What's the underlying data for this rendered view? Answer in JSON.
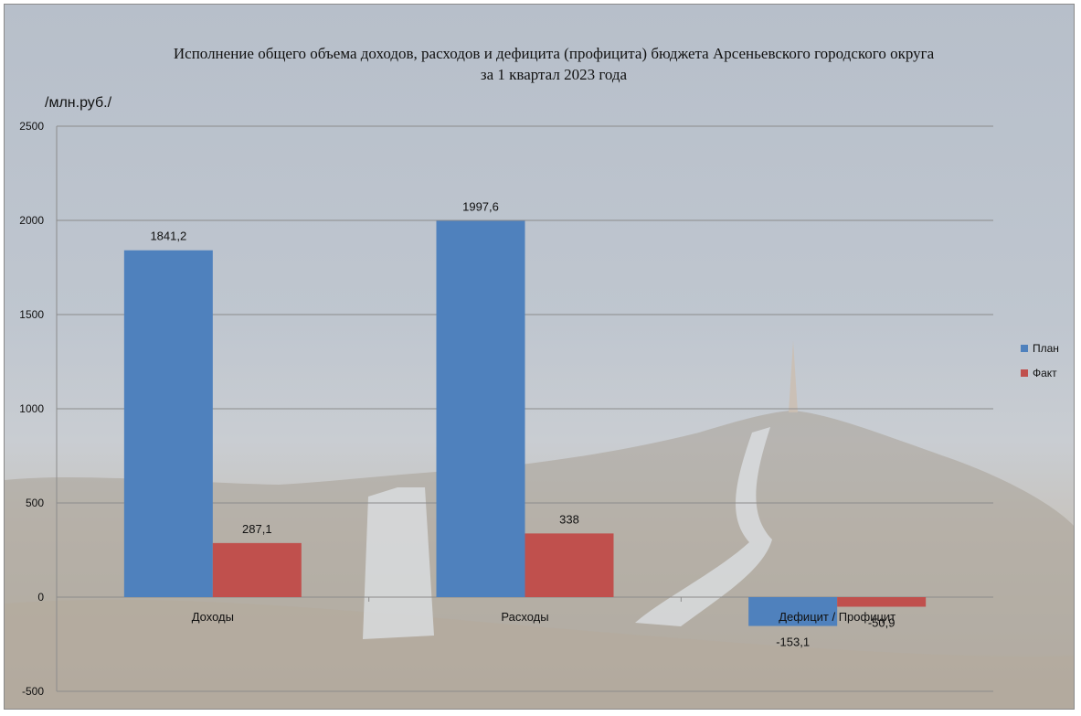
{
  "chart_data": {
    "type": "bar",
    "title_line1": "Исполнение  общего объема  доходов, расходов и дефицита  (профицита)  бюджета Арсеньевского городского округа",
    "title_line2": "за 1  квартал  2023  года",
    "unit_label": "/млн.руб./",
    "categories": [
      "Доходы",
      "Расходы",
      "Дефицит / Профицит"
    ],
    "series": [
      {
        "name": "План",
        "color": "#4f81bd",
        "values": [
          1841.2,
          1997.6,
          -153.1
        ],
        "labels": [
          "1841,2",
          "1997,6",
          "-153,1"
        ]
      },
      {
        "name": "Факт",
        "color": "#c0504d",
        "values": [
          287.1,
          338,
          -50.9
        ],
        "labels": [
          "287,1",
          "338",
          "-50,9"
        ]
      }
    ],
    "ylim": [
      -500,
      2500
    ],
    "yticks": [
      2500,
      2000,
      1500,
      1000,
      500,
      0,
      -500
    ],
    "grid": true,
    "legend_position": "right"
  }
}
